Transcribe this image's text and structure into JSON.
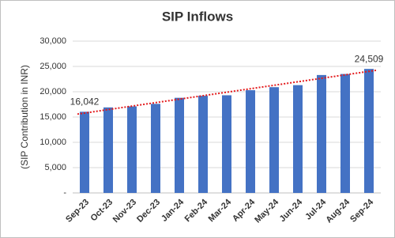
{
  "chart_data": {
    "type": "bar",
    "title": "SIP Inflows",
    "y_label": "(SIP Contribution in INR)",
    "categories": [
      "Sep-23",
      "Oct-23",
      "Nov-23",
      "Dec-23",
      "Jan-24",
      "Feb-24",
      "Mar-24",
      "Apr-24",
      "May-24",
      "Jun-24",
      "Jul-24",
      "Aug-24",
      "Sep-24"
    ],
    "values": [
      16042,
      16900,
      17100,
      17600,
      18800,
      19200,
      19300,
      20300,
      20900,
      21300,
      23300,
      23500,
      24509
    ],
    "value_labels": [
      "16,042",
      null,
      null,
      null,
      null,
      null,
      null,
      null,
      null,
      null,
      null,
      null,
      "24,509"
    ],
    "color": "#4472c4",
    "trendline": true,
    "trendline_color": "#e31a1c",
    "ylim": [
      0,
      30000
    ],
    "yticks": [
      {
        "value": 0,
        "label": "-"
      },
      {
        "value": 5000,
        "label": "5,000"
      },
      {
        "value": 10000,
        "label": "10,000"
      },
      {
        "value": 15000,
        "label": "15,000"
      },
      {
        "value": 20000,
        "label": "20,000"
      },
      {
        "value": 25000,
        "label": "25,000"
      },
      {
        "value": 30000,
        "label": "30,000"
      }
    ],
    "grid": true
  }
}
